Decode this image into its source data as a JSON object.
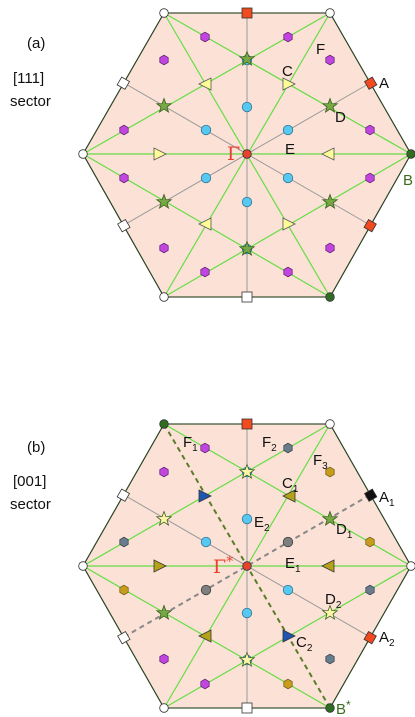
{
  "panel_a": {
    "panel_label": "(a)",
    "direction": "[111]",
    "direction_word": "sector",
    "labels": {
      "gamma": "Γ",
      "A": "A",
      "B": "B",
      "C": "C",
      "D": "D",
      "E": "E",
      "F": "F"
    }
  },
  "panel_b": {
    "panel_label": "(b)",
    "direction": "[001]",
    "direction_word": "sector",
    "labels": {
      "gamma": "Γ",
      "gamma_star": "*",
      "F1": "F",
      "F1_sub": "1",
      "F2": "F",
      "F2_sub": "2",
      "F3": "F",
      "F3_sub": "3",
      "C1": "C",
      "C1_sub": "1",
      "C2": "C",
      "C2_sub": "2",
      "D1": "D",
      "D1_sub": "1",
      "D2": "D",
      "D2_sub": "2",
      "E1": "E",
      "E1_sub": "1",
      "E2": "E",
      "E2_sub": "2",
      "A1": "A",
      "A1_sub": "1",
      "A2": "A",
      "A2_sub": "2",
      "B": "B",
      "B_star": "*"
    }
  },
  "colors": {
    "hex_fill": "#fbe1d6",
    "green_line": "#66dd44",
    "gray_line": "#9a9a9a",
    "dashed_green": "#5a7d2a",
    "dashed_gray": "#888888",
    "gamma_red": "#e8412c",
    "square_red": "#f04a1e",
    "star_green": "#76a844",
    "star_yellow": "#fdf6a8",
    "hex_purple": "#c146e0",
    "circle_cyan": "#57c8ef",
    "triangle_yellow": "#fdfc96",
    "triangle_olive": "#b4a31a",
    "triangle_blue": "#1f57b0",
    "hex_gold": "#c79e1c",
    "hex_slate": "#687c8c",
    "circle_gray": "#7f7f7f",
    "dark_green": "#2f6e22"
  }
}
